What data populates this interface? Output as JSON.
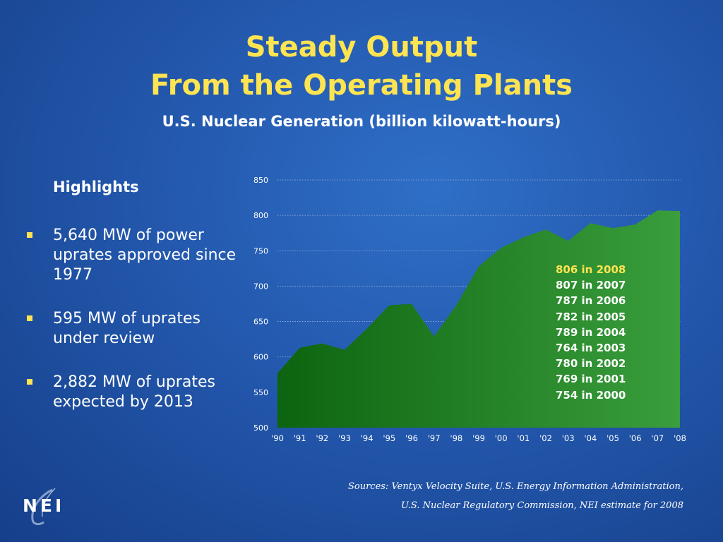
{
  "slide": {
    "title_line1": "Steady Output",
    "title_line2": "From the Operating Plants",
    "subtitle": "U.S. Nuclear Generation (billion kilowatt-hours)"
  },
  "highlights": {
    "heading": "Highlights",
    "bullets": [
      "5,640 MW of power uprates approved since 1977",
      "595 MW of uprates under review",
      "2,882 MW of uprates expected by 2013"
    ]
  },
  "annotations": [
    "806 in 2008",
    "807 in 2007",
    "787 in 2006",
    "782 in 2005",
    "789 in 2004",
    "764 in 2003",
    "780 in 2002",
    "769 in 2001",
    "754 in 2000"
  ],
  "sources": {
    "line1": "Sources: Ventyx Velocity Suite, U.S. Energy Information Administration,",
    "line2": "U.S. Nuclear Regulatory Commission,  NEI estimate for 2008"
  },
  "logo": {
    "text": "NEI"
  },
  "colors": {
    "title": "#ffe451",
    "area_dark": "#0d6410",
    "area_light": "#3a9e3c",
    "highlight": "#ffe451"
  },
  "chart_data": {
    "type": "area",
    "x": [
      "'90",
      "'91",
      "'92",
      "'93",
      "'94",
      "'95",
      "'96",
      "'97",
      "'98",
      "'99",
      "'00",
      "'01",
      "'02",
      "'03",
      "'04",
      "'05",
      "'06",
      "'07",
      "'08"
    ],
    "values": [
      577,
      613,
      619,
      610,
      640,
      673,
      675,
      629,
      673,
      728,
      754,
      769,
      780,
      764,
      789,
      782,
      787,
      807,
      806
    ],
    "ylim": [
      500,
      850
    ],
    "yticks": [
      500,
      550,
      600,
      650,
      700,
      750,
      800,
      850
    ],
    "grid": true
  }
}
